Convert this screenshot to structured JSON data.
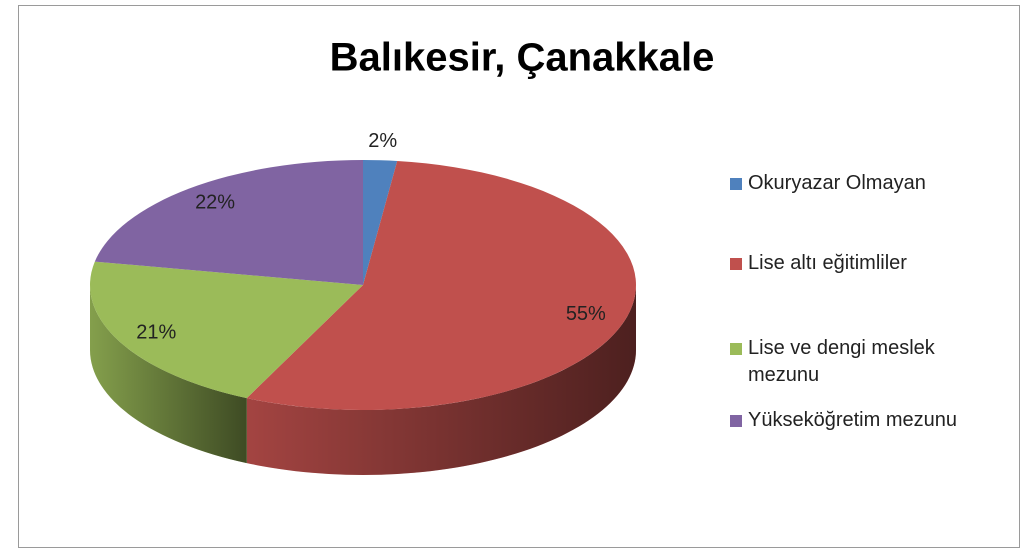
{
  "chart_data": {
    "type": "pie",
    "title": "Balıkesir, Çanakkale",
    "categories": [
      "Okuryazar Olmayan",
      "Lise altı eğitimliler",
      "Lise ve dengi meslek mezunu",
      "Yükseköğretim mezunu"
    ],
    "values": [
      2,
      55,
      21,
      22
    ],
    "value_labels": [
      "2%",
      "55%",
      "21%",
      "22%"
    ],
    "colors": [
      "#4f81bd",
      "#c0504d",
      "#9bbb59",
      "#8064a2"
    ],
    "legend": "right"
  }
}
